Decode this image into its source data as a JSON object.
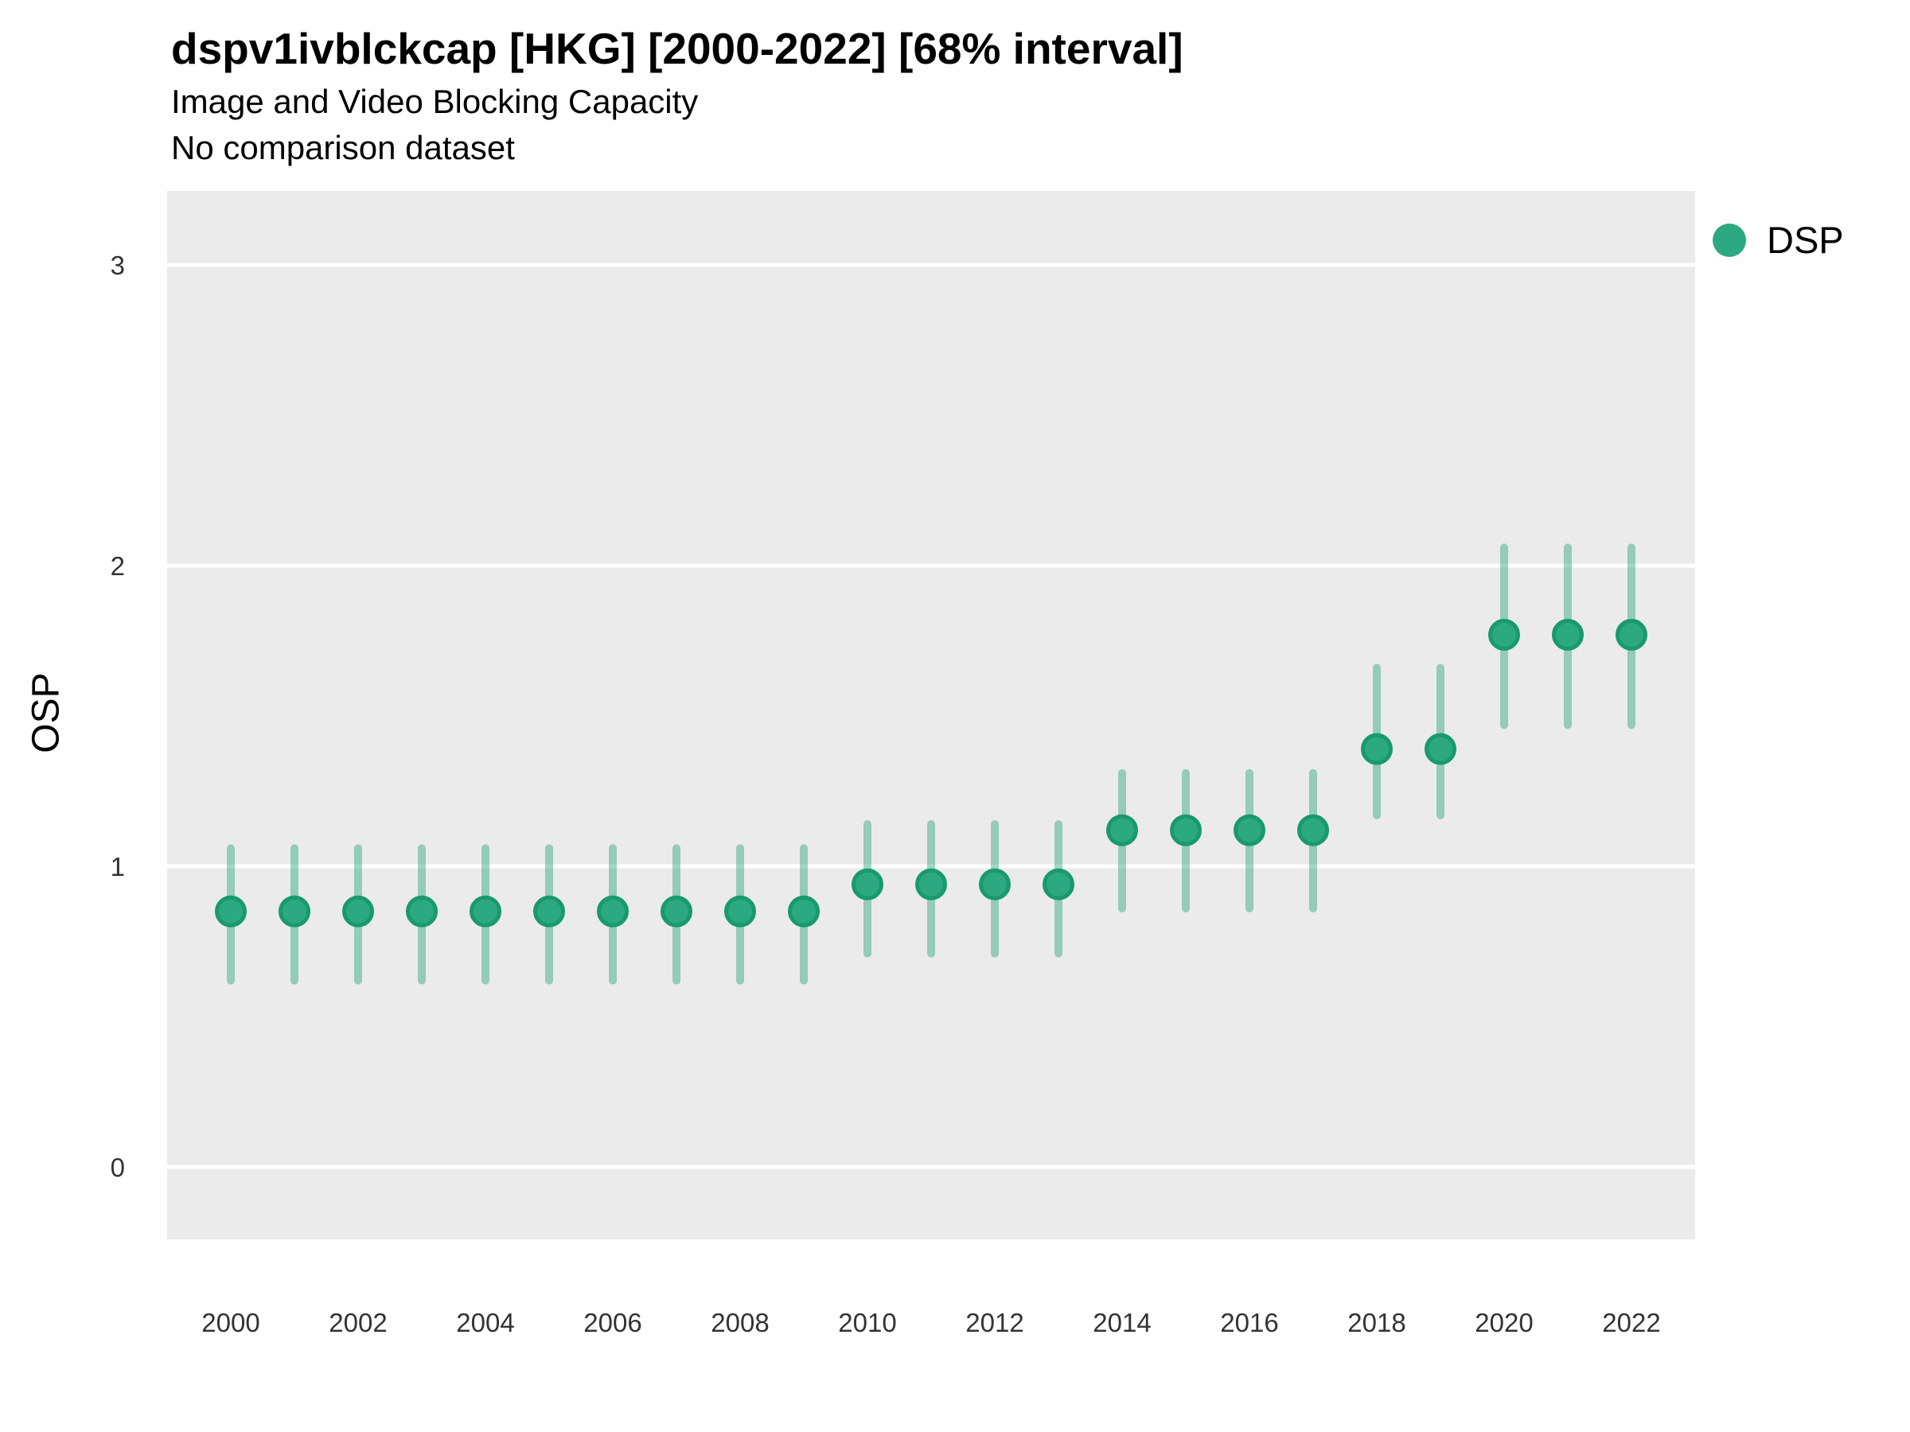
{
  "header": {
    "title": "dspv1ivblckcap [HKG] [2000-2022] [68% interval]",
    "subtitle": "Image and Video Blocking Capacity",
    "note": "No comparison dataset"
  },
  "legend": {
    "position": "right",
    "items": [
      {
        "label": "DSP",
        "color": "#2ca980"
      }
    ]
  },
  "chart_data": {
    "type": "scatter",
    "subtype": "pointrange",
    "title": "dspv1ivblckcap [HKG] [2000-2022] [68% interval]",
    "subtitle": "Image and Video Blocking Capacity",
    "note": "No comparison dataset",
    "xlabel": "",
    "ylabel": "OSP",
    "interval_label": "68% interval",
    "x": [
      2000,
      2001,
      2002,
      2003,
      2004,
      2005,
      2006,
      2007,
      2008,
      2009,
      2010,
      2011,
      2012,
      2013,
      2014,
      2015,
      2016,
      2017,
      2018,
      2019,
      2020,
      2021,
      2022
    ],
    "series": [
      {
        "name": "DSP",
        "values": [
          0.85,
          0.85,
          0.85,
          0.85,
          0.85,
          0.85,
          0.85,
          0.85,
          0.85,
          0.85,
          0.94,
          0.94,
          0.94,
          0.94,
          1.12,
          1.12,
          1.12,
          1.12,
          1.39,
          1.39,
          1.77,
          1.77,
          1.77
        ],
        "lower": [
          0.62,
          0.62,
          0.62,
          0.62,
          0.62,
          0.62,
          0.62,
          0.62,
          0.62,
          0.62,
          0.71,
          0.71,
          0.71,
          0.71,
          0.86,
          0.86,
          0.86,
          0.86,
          1.17,
          1.17,
          1.47,
          1.47,
          1.47
        ],
        "upper": [
          1.06,
          1.06,
          1.06,
          1.06,
          1.06,
          1.06,
          1.06,
          1.06,
          1.06,
          1.06,
          1.14,
          1.14,
          1.14,
          1.14,
          1.31,
          1.31,
          1.31,
          1.31,
          1.66,
          1.66,
          2.06,
          2.06,
          2.06
        ]
      }
    ],
    "x_ticks": [
      2000,
      2002,
      2004,
      2006,
      2008,
      2010,
      2012,
      2014,
      2016,
      2018,
      2020,
      2022
    ],
    "y_ticks": [
      0,
      1,
      2,
      3
    ],
    "xlim": [
      1999,
      2023
    ],
    "ylim": [
      -0.241,
      3.246
    ],
    "grid": "horizontal major only, white lines on grey panel",
    "legend_position": "right",
    "colors": {
      "point": "#2ca980",
      "point_stroke": "#189a6c",
      "interval": "rgba(42,165,125,0.45)",
      "panel_bg": "#ebebeb",
      "grid": "#ffffff",
      "title_text": "#000000",
      "tick_text": "#333333"
    }
  }
}
